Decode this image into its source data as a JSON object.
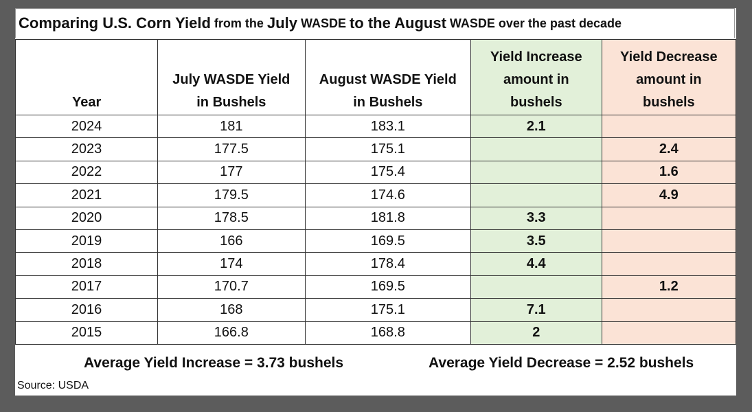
{
  "title": {
    "parts": [
      "Comparing U.S. Corn Yield",
      "from the",
      "July",
      "WASDE",
      "to the August",
      "WASDE over the past decade"
    ]
  },
  "table": {
    "headers": [
      "Year",
      "July WASDE Yield in Bushels",
      "August WASDE Yield in Bushels",
      "Yield Increase amount in bushels",
      "Yield Decrease amount in bushels"
    ],
    "rows": [
      [
        2024,
        181,
        183.1,
        2.1,
        null
      ],
      [
        2023,
        177.5,
        175.1,
        null,
        2.4
      ],
      [
        2022,
        177,
        175.4,
        null,
        1.6
      ],
      [
        2021,
        179.5,
        174.6,
        null,
        4.9
      ],
      [
        2020,
        178.5,
        181.8,
        3.3,
        null
      ],
      [
        2019,
        166,
        169.5,
        3.5,
        null
      ],
      [
        2018,
        174,
        178.4,
        4.4,
        null
      ],
      [
        2017,
        170.7,
        169.5,
        null,
        1.2
      ],
      [
        2016,
        168,
        175.1,
        7.1,
        null
      ],
      [
        2015,
        166.8,
        168.8,
        2,
        null
      ]
    ]
  },
  "footer": {
    "average_increase": "Average Yield Increase = 3.73 bushels",
    "average_decrease": "Average Yield Decrease = 2.52 bushels",
    "source": "Source: USDA"
  }
}
